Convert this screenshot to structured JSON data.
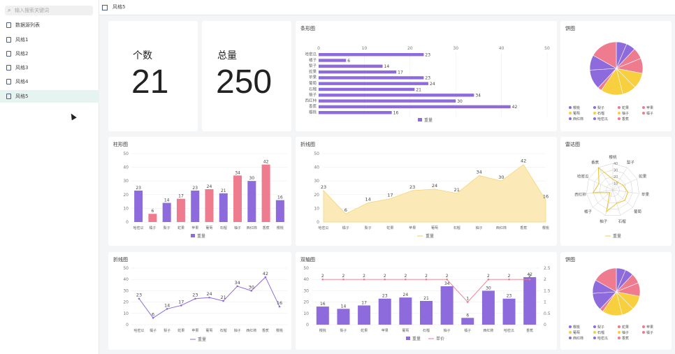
{
  "sidebar": {
    "search_placeholder": "输入搜索关键词",
    "items": [
      {
        "label": "数据源列表",
        "active": false
      },
      {
        "label": "风格1",
        "active": false
      },
      {
        "label": "风格2",
        "active": false
      },
      {
        "label": "风格3",
        "active": false
      },
      {
        "label": "风格4",
        "active": false
      },
      {
        "label": "风格5",
        "active": true
      }
    ]
  },
  "header": {
    "title": "风格5"
  },
  "kpis": [
    {
      "label": "个数",
      "value": "21"
    },
    {
      "label": "总量",
      "value": "250"
    }
  ],
  "colors": {
    "purple": "#8e6bdc",
    "pink": "#ef7b8e",
    "yellow": "#f8cf3e",
    "accent": "#e6f4f1"
  },
  "chart_data": [
    {
      "id": "hbar",
      "type": "bar",
      "orientation": "horizontal",
      "title": "条形图",
      "categories": [
        "哈密瓜",
        "橘子",
        "梨子",
        "蛇果",
        "苹果",
        "葡萄",
        "石榴",
        "柚子",
        "西红柿",
        "香蕉",
        "樱桃"
      ],
      "values": [
        23,
        6,
        14,
        17,
        23,
        24,
        21,
        34,
        30,
        42,
        16
      ],
      "series_name": "重量",
      "xlim": [
        0,
        50
      ],
      "xticks": [
        0,
        10,
        20,
        30,
        40,
        50
      ]
    },
    {
      "id": "pie1",
      "type": "pie",
      "title": "饼图",
      "legend": [
        "樱桃",
        "梨子",
        "蛇果",
        "苹果",
        "葡萄",
        "石榴",
        "柚子",
        "橘子",
        "西红柿",
        "哈密瓜",
        "香蕉"
      ]
    },
    {
      "id": "vbar",
      "type": "bar",
      "title": "柱形图",
      "categories": [
        "哈密瓜",
        "橘子",
        "梨子",
        "蛇果",
        "苹果",
        "葡萄",
        "石榴",
        "柚子",
        "西红柿",
        "香蕉",
        "樱桃"
      ],
      "values": [
        23,
        6,
        14,
        17,
        23,
        24,
        21,
        34,
        30,
        42,
        16
      ],
      "series_name": "重量",
      "ylim": [
        0,
        50
      ],
      "yticks": [
        0,
        10,
        20,
        30,
        40,
        50
      ]
    },
    {
      "id": "area",
      "type": "area",
      "title": "折线图",
      "categories": [
        "哈密瓜",
        "橘子",
        "梨子",
        "蛇果",
        "苹果",
        "葡萄",
        "石榴",
        "柚子",
        "西红柿",
        "香蕉",
        "樱桃"
      ],
      "values": [
        23,
        6,
        14,
        17,
        23,
        24,
        21,
        34,
        30,
        42,
        16
      ],
      "series_name": "重量",
      "ylim": [
        0,
        50
      ],
      "yticks": [
        0,
        10,
        20,
        30,
        40,
        50
      ]
    },
    {
      "id": "radar",
      "type": "radar",
      "title": "雷达图",
      "indicators": [
        "樱桃",
        "梨子",
        "蛇果",
        "苹果",
        "葡萄",
        "石榴",
        "柚子",
        "橘子",
        "西红柿",
        "哈密瓜",
        "香蕉"
      ],
      "values": [
        16,
        14,
        17,
        23,
        24,
        21,
        34,
        6,
        30,
        23,
        42
      ],
      "max": 40,
      "rings": [
        0,
        10,
        20,
        30,
        40
      ],
      "series_name": "重量"
    },
    {
      "id": "line",
      "type": "line",
      "title": "折线图",
      "categories": [
        "哈密瓜",
        "橘子",
        "梨子",
        "蛇果",
        "苹果",
        "葡萄",
        "石榴",
        "柚子",
        "西红柿",
        "香蕉",
        "樱桃"
      ],
      "values": [
        23,
        6,
        14,
        17,
        23,
        24,
        21,
        34,
        30,
        42,
        16
      ],
      "series_name": "重量",
      "ylim": [
        0,
        50
      ],
      "yticks": [
        0,
        10,
        20,
        30,
        40,
        50
      ]
    },
    {
      "id": "dual",
      "type": "bar",
      "title": "双轴图",
      "categories": [
        "樱桃",
        "梨子",
        "蛇果",
        "苹果",
        "葡萄",
        "石榴",
        "柚子",
        "橘子",
        "西红柿",
        "哈密瓜",
        "香蕉"
      ],
      "series": [
        {
          "name": "重量",
          "type": "bar",
          "values": [
            16,
            14,
            17,
            23,
            24,
            21,
            34,
            6,
            30,
            23,
            42
          ]
        },
        {
          "name": "单价",
          "type": "line",
          "values": [
            2,
            2,
            2,
            2,
            2,
            2,
            2,
            1,
            2,
            2,
            2
          ]
        }
      ],
      "ylim": [
        0,
        50
      ],
      "yticks": [
        0,
        10,
        20,
        30,
        40,
        50
      ],
      "y2lim": [
        0,
        2.5
      ],
      "y2ticks": [
        0,
        0.5,
        1,
        1.5,
        2,
        2.5
      ]
    },
    {
      "id": "pie2",
      "type": "pie",
      "title": "饼图",
      "legend": [
        "樱桃",
        "梨子",
        "蛇果",
        "苹果",
        "葡萄",
        "石榴",
        "柚子",
        "橘子",
        "西红柿",
        "哈密瓜",
        "香蕉"
      ]
    }
  ]
}
